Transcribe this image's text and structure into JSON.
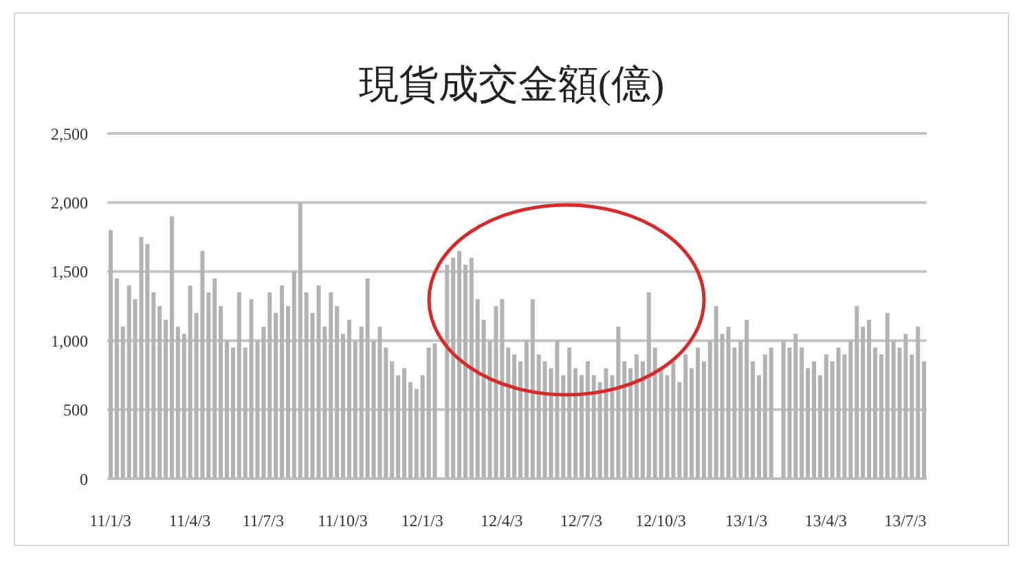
{
  "chart_data": {
    "type": "bar",
    "title": "現貨成交金額(億)",
    "categories": [
      "11/1/3",
      null,
      null,
      null,
      null,
      null,
      null,
      null,
      null,
      null,
      null,
      null,
      null,
      "11/4/3",
      null,
      null,
      null,
      null,
      null,
      null,
      null,
      null,
      null,
      null,
      null,
      "11/7/3",
      null,
      null,
      null,
      null,
      null,
      null,
      null,
      null,
      null,
      null,
      null,
      null,
      "11/10/3",
      null,
      null,
      null,
      null,
      null,
      null,
      null,
      null,
      null,
      null,
      null,
      null,
      "12/1/3",
      null,
      null,
      null,
      null,
      null,
      null,
      null,
      null,
      null,
      null,
      null,
      null,
      "12/4/3",
      null,
      null,
      null,
      null,
      null,
      null,
      null,
      null,
      null,
      null,
      null,
      null,
      "12/7/3",
      null,
      null,
      null,
      null,
      null,
      null,
      null,
      null,
      null,
      null,
      null,
      null,
      "12/10/3",
      null,
      null,
      null,
      null,
      null,
      null,
      null,
      null,
      null,
      null,
      null,
      null,
      null,
      "13/1/3",
      null,
      null,
      null,
      null,
      null,
      null,
      null,
      null,
      null,
      null,
      null,
      null,
      "13/4/3",
      null,
      null,
      null,
      null,
      null,
      null,
      null,
      null,
      null,
      null,
      null,
      null,
      "13/7/3",
      null,
      null,
      null
    ],
    "values": [
      1800,
      1450,
      1100,
      1400,
      1300,
      1750,
      1700,
      1350,
      1250,
      1150,
      1900,
      1100,
      1050,
      1400,
      1200,
      1650,
      1350,
      1450,
      1250,
      1000,
      950,
      1350,
      950,
      1300,
      1000,
      1100,
      1350,
      1200,
      1400,
      1250,
      1500,
      2000,
      1350,
      1200,
      1400,
      1100,
      1350,
      1250,
      1050,
      1150,
      1000,
      1100,
      1450,
      1000,
      1100,
      950,
      850,
      750,
      800,
      700,
      650,
      750,
      950,
      980,
      null,
      1550,
      1600,
      1650,
      1550,
      1600,
      1300,
      1150,
      1000,
      1250,
      1300,
      950,
      900,
      850,
      1000,
      1300,
      900,
      850,
      800,
      1000,
      750,
      950,
      800,
      750,
      850,
      750,
      700,
      800,
      750,
      1100,
      850,
      800,
      900,
      850,
      1350,
      950,
      800,
      750,
      850,
      700,
      900,
      800,
      950,
      850,
      1000,
      1250,
      1050,
      1100,
      950,
      1000,
      1150,
      850,
      750,
      900,
      950,
      null,
      1000,
      950,
      1050,
      950,
      800,
      850,
      750,
      900,
      850,
      950,
      900,
      1000,
      1250,
      1100,
      1150,
      950,
      900,
      1200,
      1000,
      950,
      1050,
      900,
      1100,
      850
    ],
    "color": "#b3b3b3",
    "ylim": [
      0,
      2500
    ],
    "yticks": [
      0,
      500,
      {
        "value": 1000,
        "label": "1,000"
      },
      {
        "value": 1500,
        "label": "1,500"
      },
      {
        "value": 2000,
        "label": "2,000"
      },
      {
        "value": 2500,
        "label": "2,500"
      }
    ],
    "grid": "y"
  }
}
